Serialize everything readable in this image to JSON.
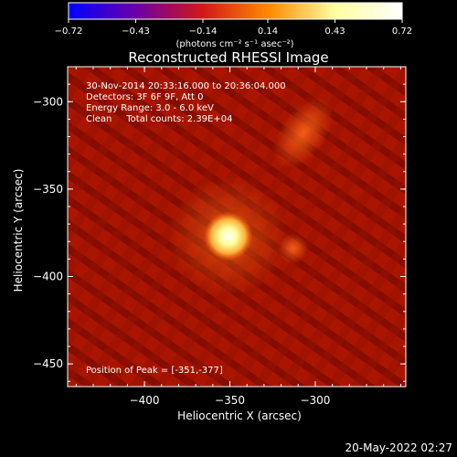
{
  "chart_data": {
    "type": "heatmap",
    "title": "Reconstructed RHESSI Image",
    "xlabel": "Heliocentric X (arcsec)",
    "ylabel": "Heliocentric Y (arcsec)",
    "xlim": [
      -445,
      -247
    ],
    "ylim": [
      -463,
      -280
    ],
    "x_ticks": [
      -400,
      -350,
      -300
    ],
    "y_ticks": [
      -300,
      -350,
      -400,
      -450
    ],
    "x_tick_labels": [
      "−400",
      "−350",
      "−300"
    ],
    "y_tick_labels": [
      "−300",
      "−350",
      "−400",
      "−450"
    ],
    "colorbar": {
      "range": [
        -0.72,
        0.72
      ],
      "ticks": [
        -0.72,
        -0.43,
        -0.14,
        0.14,
        0.43,
        0.72
      ],
      "tick_labels": [
        "−0.72",
        "−0.43",
        "−0.14",
        "0.14",
        "0.43",
        "0.72"
      ],
      "units": "(photons cm⁻² s⁻¹ asec⁻²)",
      "colors": [
        "#0000ff",
        "#6a00a8",
        "#d01818",
        "#ff8a00",
        "#ffffa0",
        "#ffffff"
      ]
    },
    "annotations": [
      "30-Nov-2014 20:33:16.000 to 20:36:04.000",
      "Detectors: 3F 6F 9F, Att 0",
      "Energy Range: 3.0 - 6.0 keV",
      "Clean     Total counts: 2.39E+04"
    ],
    "peak_label": "Position of Peak = [-351,-377]",
    "peak": {
      "x": -351,
      "y": -377
    },
    "sources": [
      {
        "x": -351,
        "y": -377,
        "peak": 0.72,
        "sigma": 5
      },
      {
        "x": -313,
        "y": -384,
        "peak": 0.28,
        "sigma": 4
      },
      {
        "x": -307,
        "y": -318,
        "peak": 0.25,
        "sigma": 6
      }
    ]
  },
  "timestamp": "20-May-2022 02:27"
}
